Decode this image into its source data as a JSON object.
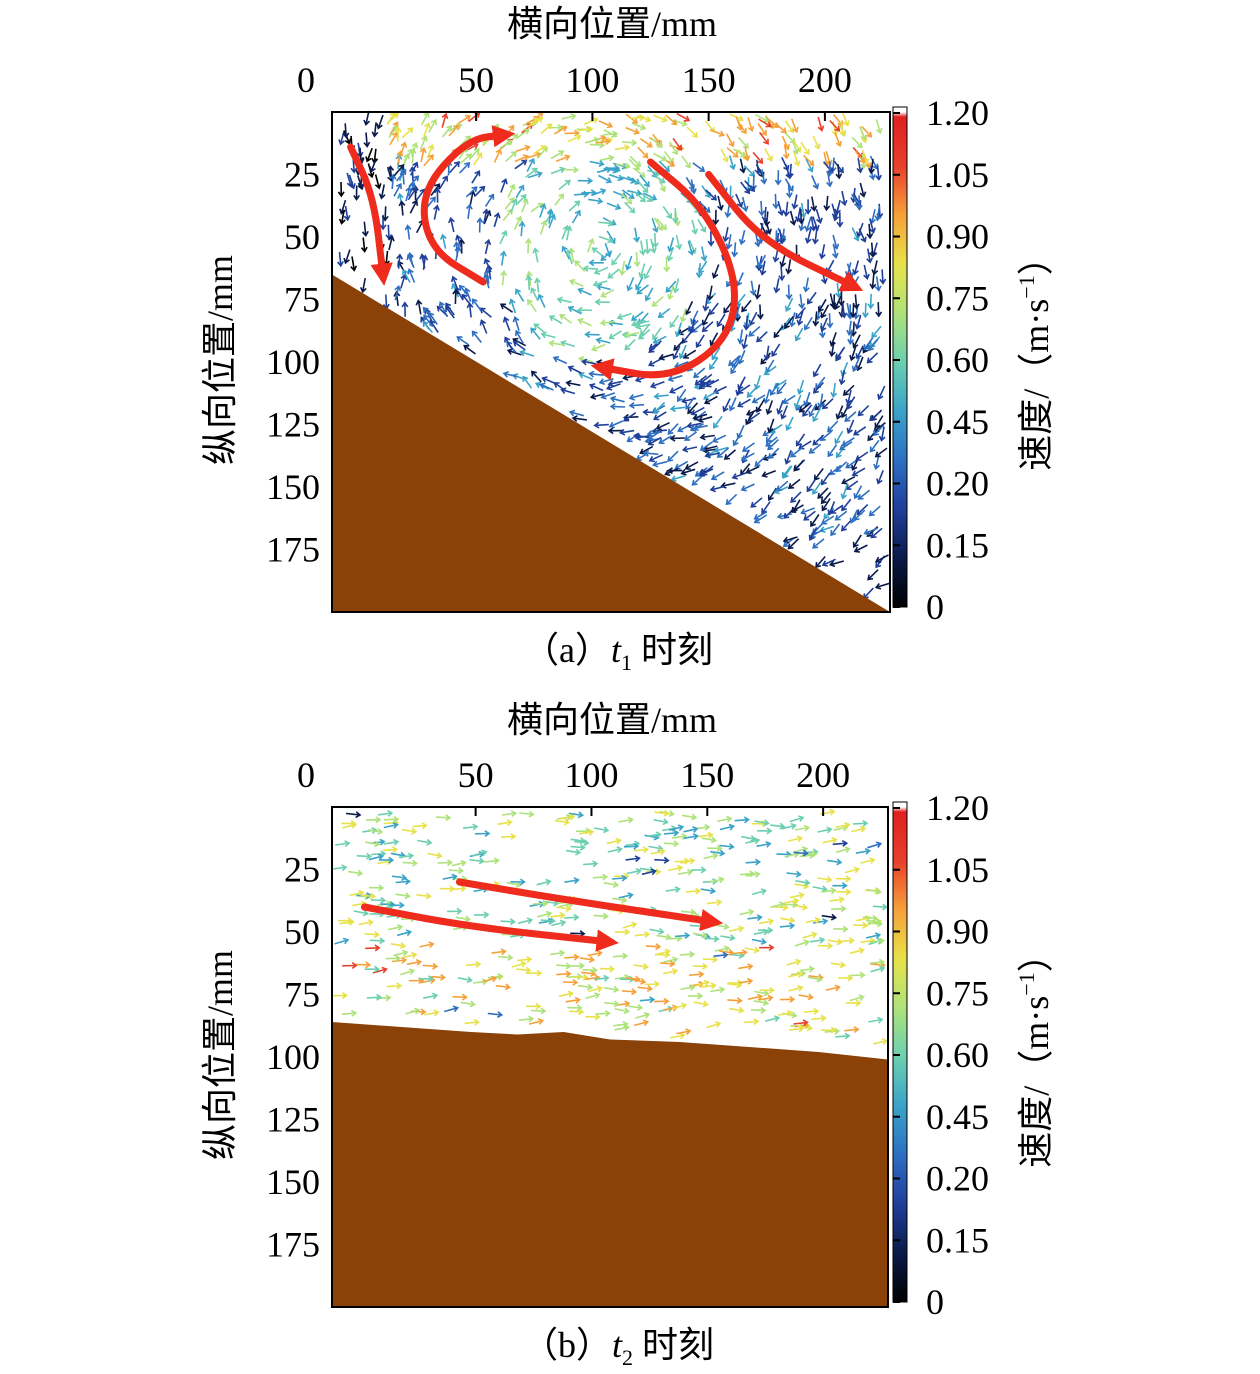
{
  "colors": {
    "sediment": "#8a4208",
    "flow_arrow": "#ee2b1c",
    "colormap": [
      "#000000",
      "#0a1a4a",
      "#1f3f9a",
      "#2e6fc0",
      "#3aa3c8",
      "#6ccfb0",
      "#aee27a",
      "#e8e24a",
      "#f5a13a",
      "#e8402c",
      "#e02020",
      "#ffffff"
    ]
  },
  "chart_data": [
    {
      "type": "quiver",
      "panel_label_prefix": "（a）",
      "panel_label_var": "t",
      "panel_label_sub": "1",
      "panel_label_suffix": " 时刻",
      "xlabel": "横向位置/mm",
      "ylabel": "纵向位置/mm",
      "xlim": [
        0,
        240
      ],
      "ylim": [
        200,
        0
      ],
      "x_ticks": [
        "0",
        "50",
        "100",
        "150",
        "200"
      ],
      "x_tick_values": [
        0,
        62,
        112,
        162,
        212
      ],
      "y_ticks": [
        "25",
        "50",
        "75",
        "100",
        "125",
        "150",
        "175"
      ],
      "y_tick_values": [
        25,
        50,
        75,
        100,
        125,
        150,
        175
      ],
      "colorbar_label": "速度/（m·s",
      "colorbar_label_sup": "−1",
      "colorbar_label_close": "）",
      "colorbar_ticks": [
        "1.20",
        "1.05",
        "0.90",
        "0.75",
        "0.60",
        "0.45",
        "0.20",
        "0.15",
        "0"
      ],
      "bed_profile": [
        [
          0,
          65
        ],
        [
          240,
          200
        ]
      ],
      "flow_paths": [
        {
          "points": [
            [
              8,
              14
            ],
            [
              18,
              34
            ],
            [
              22,
              66
            ]
          ]
        },
        {
          "points": [
            [
              65,
              68
            ],
            [
              42,
              55
            ],
            [
              38,
              32
            ],
            [
              58,
              11
            ],
            [
              75,
              9
            ]
          ]
        },
        {
          "points": [
            [
              137,
              20
            ],
            [
              160,
              38
            ],
            [
              175,
              68
            ],
            [
              170,
              92
            ],
            [
              145,
              107
            ],
            [
              115,
              102
            ]
          ]
        },
        {
          "points": [
            [
              162,
              25
            ],
            [
              185,
              52
            ],
            [
              225,
              70
            ]
          ]
        }
      ]
    },
    {
      "type": "quiver",
      "panel_label_prefix": "（b）",
      "panel_label_var": "t",
      "panel_label_sub": "2",
      "panel_label_suffix": " 时刻",
      "xlabel": "横向位置/mm",
      "ylabel": "纵向位置/mm",
      "xlim": [
        0,
        240
      ],
      "ylim": [
        200,
        0
      ],
      "x_ticks": [
        "0",
        "50",
        "100",
        "150",
        "200"
      ],
      "x_tick_values": [
        0,
        62,
        112,
        162,
        212
      ],
      "y_ticks": [
        "25",
        "50",
        "75",
        "100",
        "125",
        "150",
        "175"
      ],
      "y_tick_values": [
        25,
        50,
        75,
        100,
        125,
        150,
        175
      ],
      "colorbar_label": "速度/（m·s",
      "colorbar_label_sup": "−1",
      "colorbar_label_close": "）",
      "colorbar_ticks": [
        "1.20",
        "1.05",
        "0.90",
        "0.75",
        "0.60",
        "0.45",
        "0.20",
        "0.15",
        "0"
      ],
      "bed_profile": [
        [
          0,
          86
        ],
        [
          30,
          88
        ],
        [
          60,
          90
        ],
        [
          80,
          91
        ],
        [
          100,
          90
        ],
        [
          120,
          93
        ],
        [
          150,
          94
        ],
        [
          180,
          96
        ],
        [
          210,
          98
        ],
        [
          240,
          101
        ]
      ],
      "flow_paths": [
        {
          "points": [
            [
              14,
              40
            ],
            [
              60,
              48
            ],
            [
              120,
              54
            ]
          ]
        },
        {
          "points": [
            [
              55,
              30
            ],
            [
              100,
              37
            ],
            [
              165,
              46
            ]
          ]
        }
      ]
    }
  ]
}
